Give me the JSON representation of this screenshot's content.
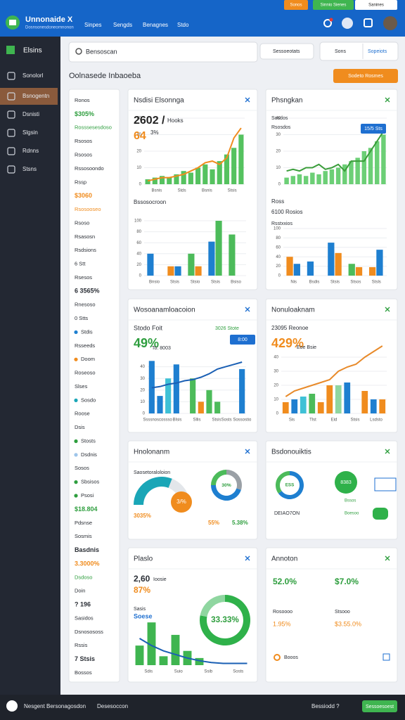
{
  "header": {
    "title": "Unnonaide X",
    "subtitle": "Dosnsonesdoneornnonon",
    "nav": [
      "Sinpes",
      "Sengds",
      "Benagnes",
      "Stdo"
    ],
    "buttons": [
      "Sonos",
      "Sinnio Sienes",
      "Sanines"
    ]
  },
  "sidebar": {
    "brand": "Elsins",
    "items": [
      "Sonolorl",
      "Bsnogentn",
      "Dsnisti",
      "Slgsin",
      "Rdnns",
      "Stsns"
    ],
    "active": 1
  },
  "toolbar": {
    "search": "Bensoscan",
    "filter": "Sessoeotats",
    "view": "Sons",
    "action": "Sopeiots"
  },
  "page": {
    "heading": "Oolnasede Inbaoeba",
    "button": "Sodeto Rosmes"
  },
  "list": [
    {
      "text": "Ronos"
    },
    {
      "text": "$305%",
      "color": "#2e9e3e",
      "bold": true
    },
    {
      "text": "Rosssesesdoso",
      "color": "#2e9e3e"
    },
    {
      "text": "Rsosos"
    },
    {
      "text": "Rsosos"
    },
    {
      "text": "Rssosoondo"
    },
    {
      "text": "Rssp"
    },
    {
      "text": "$3060",
      "color": "#f08c1e",
      "bold": true
    },
    {
      "text": "Rsosooseo",
      "color": "#f08c1e"
    },
    {
      "text": "Rsoso"
    },
    {
      "text": "Rsasosn"
    },
    {
      "text": "Rsdsions"
    },
    {
      "text": "6 Stt"
    },
    {
      "text": "Rsesos"
    },
    {
      "text": "6 3565%",
      "bold": true
    },
    {
      "text": "Rnesoso"
    },
    {
      "text": "0 Stts"
    },
    {
      "text": "Stdis",
      "dot": "#1e7fd0"
    },
    {
      "text": "Rsseeds"
    },
    {
      "text": "Doom",
      "dot": "#f08c1e"
    },
    {
      "text": "Roseoso"
    },
    {
      "text": "Slses"
    },
    {
      "text": "Sosdo",
      "dot": "#1aa6b7"
    },
    {
      "text": "Roose"
    },
    {
      "text": "Dsis"
    },
    {
      "text": "Stosts",
      "dot": "#2e9e3e"
    },
    {
      "text": "Dsdnis",
      "dot": "#9ec5ea"
    },
    {
      "text": "Sosos"
    },
    {
      "text": "Sbsisos",
      "dot": "#2e9e3e"
    },
    {
      "text": "Psosi",
      "dot": "#2e9e3e"
    },
    {
      "text": "$18.804",
      "color": "#2e9e3e",
      "bold": true
    },
    {
      "text": "Pdsnse"
    },
    {
      "text": "Sosmis"
    },
    {
      "text": "Basdnis",
      "bold": true
    },
    {
      "text": "3.3000%",
      "color": "#f08c1e",
      "bold": true
    },
    {
      "text": "Dsdoso",
      "color": "#2e9e3e"
    },
    {
      "text": "Doin"
    },
    {
      "text": "? 196",
      "bold": true
    },
    {
      "text": "Sasidos"
    },
    {
      "text": "Dsnosososs"
    },
    {
      "text": "Rssis"
    },
    {
      "text": "7 Stsis",
      "bold": true
    },
    {
      "text": "Bossos"
    }
  ],
  "panels": [
    {
      "title": "Nsdisi Elsonnga",
      "texts": [
        "2602 /",
        "Hooks",
        "64",
        "3%",
        "Bssosocroon"
      ],
      "charts": [
        {
          "type": "combo",
          "ylim": [
            0,
            40
          ],
          "yticks": [
            0,
            10,
            20,
            30,
            40
          ],
          "bar_color": "#55c25f",
          "bars": [
            3,
            4,
            5,
            4,
            6,
            8,
            7,
            10,
            12,
            9,
            14,
            18,
            22,
            30
          ],
          "line_color": "#f08c1e",
          "line": [
            2,
            3,
            4,
            4,
            5,
            6,
            8,
            10,
            13,
            14,
            12,
            16,
            28,
            34
          ],
          "xlabels": [
            "Bsnis",
            "Stds",
            "Bsnis",
            "Stsis"
          ]
        },
        {
          "type": "bar",
          "ylim": [
            0,
            100
          ],
          "yticks": [
            0,
            20,
            40,
            60,
            80,
            100
          ],
          "categories": [
            "Bnsio",
            "Stsis",
            "Stsio",
            "Stsis",
            "Bsiso"
          ],
          "series": [
            {
              "values": [
                40,
                17,
                40,
                62,
                75
              ],
              "colors": [
                "#1e7fd0",
                "#f08c1e",
                "#4cbb5a",
                "#1e7fd0",
                "#4cbb5a"
              ]
            },
            {
              "values": [
                null,
                17,
                17,
                100,
                null
              ],
              "colors": [
                null,
                "#1e7fd0",
                "#f08c1e",
                "#4cbb5a",
                null
              ]
            }
          ]
        }
      ]
    },
    {
      "title": "Phsngkan",
      "texts": [
        "Sosdos",
        "Rsosdos",
        "15/5 Sts",
        "Ross",
        "6100 Rosios",
        "Rsstxxios"
      ],
      "charts": [
        {
          "type": "combo",
          "ylim": [
            0,
            40
          ],
          "yticks": [
            0,
            10,
            20,
            30,
            40
          ],
          "bar_color": "#6ccf76",
          "bars": [
            4,
            5,
            6,
            5,
            7,
            6,
            8,
            9,
            10,
            12,
            14,
            16,
            20,
            22,
            26,
            30
          ],
          "line_color": "#3a9d3a",
          "line": [
            8,
            9,
            8,
            10,
            10,
            12,
            9,
            10,
            12,
            8,
            14,
            14,
            14,
            20,
            26,
            32
          ]
        },
        {
          "type": "bar",
          "ylim": [
            0,
            100
          ],
          "yticks": [
            0,
            20,
            40,
            60,
            80,
            100
          ],
          "categories": [
            "Nis",
            "Bsdis",
            "Stsis",
            "Stsos",
            "Stsls"
          ],
          "series": [
            {
              "values": [
                40,
                30,
                70,
                25,
                18
              ],
              "colors": [
                "#f08c1e",
                "#1e7fd0",
                "#1e7fd0",
                "#4cbb5a",
                "#f08c1e"
              ]
            },
            {
              "values": [
                25,
                null,
                48,
                18,
                55
              ],
              "colors": [
                "#1e7fd0",
                null,
                "#f08c1e",
                "#f08c1e",
                "#1e7fd0"
              ]
            }
          ]
        }
      ]
    },
    {
      "title": "Wosoanamloacoion",
      "texts": [
        "Stodo Foit",
        "49%",
        "To: 8003",
        "3026 Stote",
        "8:00"
      ],
      "charts": [
        {
          "type": "combo",
          "ylim": [
            0,
            50
          ],
          "yticks": [
            0,
            10,
            20,
            30,
            40
          ],
          "bars": [
            45,
            15,
            30,
            42,
            null,
            30,
            10,
            20,
            10,
            null,
            null,
            38
          ],
          "bar_colors": [
            "#1e7fd0",
            "#1e7fd0",
            "#3fc1d6",
            "#1e7fd0",
            null,
            "#4cbb5a",
            "#f08c1e",
            "#4cbb5a",
            "#4cbb5a",
            null,
            null,
            "#1e7fd0"
          ],
          "line_color": "#1a5fb4",
          "line": [
            22,
            23,
            25,
            26,
            28,
            29,
            31,
            34,
            38,
            40,
            42,
            44
          ],
          "xlabels": [
            "Ssssnoscossso",
            "Blsis",
            "Sllis",
            "Stsis",
            "Sosts Sossostio"
          ]
        }
      ]
    },
    {
      "title": "Nonuloaknam",
      "texts": [
        "23095 Reonoe",
        "429%",
        "Eoe Bsie"
      ],
      "charts": [
        {
          "type": "combo",
          "ylim": [
            0,
            50
          ],
          "yticks": [
            0,
            10,
            20,
            30,
            40
          ],
          "bars": [
            8,
            10,
            12,
            14,
            8,
            20,
            20,
            22,
            null,
            16,
            10,
            10
          ],
          "bar_colors": [
            "#f08c1e",
            "#1e7fd0",
            "#3fc1d6",
            "#4cbb5a",
            "#f08c1e",
            "#f08c1e",
            "#8fd6a0",
            "#1e7fd0",
            null,
            "#f08c1e",
            "#1e7fd0",
            "#f08c1e"
          ],
          "line_color": "#e88a2a",
          "line": [
            12,
            16,
            18,
            20,
            22,
            24,
            30,
            33,
            35,
            40,
            44,
            48
          ],
          "xlabels": [
            "Sis",
            "Tlst",
            "Eid",
            "Stsis",
            "Lsdsto"
          ]
        }
      ]
    },
    {
      "title": "Hnolonanm",
      "texts": [
        "Saosetoraloloion",
        "3/%",
        "3035%",
        "55%",
        "5.38%"
      ],
      "charts": [
        {
          "type": "gauge",
          "value": 62,
          "range": [
            0,
            100
          ],
          "color": "#1aa6b7"
        },
        {
          "type": "donut",
          "values": [
            30,
            45,
            25
          ],
          "colors": [
            "#9aa0a6",
            "#1e7fd0",
            "#4cbb5a"
          ],
          "label": "30%"
        }
      ]
    },
    {
      "title": "Bsdonouiktis",
      "texts": [
        "8383",
        "DEIAO7ON",
        "Bssos",
        "Boesoo"
      ],
      "charts": [
        {
          "type": "donut",
          "values": [
            65,
            35
          ],
          "colors": [
            "#1e7fd0",
            "#4cbb5a"
          ],
          "label": "ESS"
        }
      ]
    },
    {
      "title": "Plaslo",
      "texts": [
        "2,60",
        "Ioosie",
        "87%",
        "Sasis",
        "Soese"
      ],
      "charts": [
        {
          "type": "combo",
          "ylim": [
            0,
            60
          ],
          "bar_color": "#3fb550",
          "bars": [
            22,
            48,
            10,
            34,
            16,
            8,
            null,
            null,
            null,
            null
          ],
          "line_color": "#1a5fb4",
          "line": [
            30,
            22,
            16,
            12,
            8,
            5,
            3,
            2,
            2,
            2
          ],
          "xlabels": [
            "Sdis",
            "Suio",
            "Ssib",
            "Sosts"
          ]
        },
        {
          "type": "donut",
          "values": [
            78,
            22
          ],
          "colors": [
            "#2fb14a",
            "#8fd6a0"
          ],
          "label": "33.33%"
        }
      ]
    },
    {
      "title": "Annoton",
      "texts": [
        "52.0%",
        "$7.0%",
        "Rosoooo",
        "Stsooo",
        "1.95%",
        "$3.55.0%",
        "Booos"
      ],
      "charts": []
    }
  ],
  "footer": {
    "left": "Nesgent Bersonagosdon",
    "middle": "Desesoccon",
    "right": "Bessiodd ?",
    "button": "Sessoesoest"
  }
}
